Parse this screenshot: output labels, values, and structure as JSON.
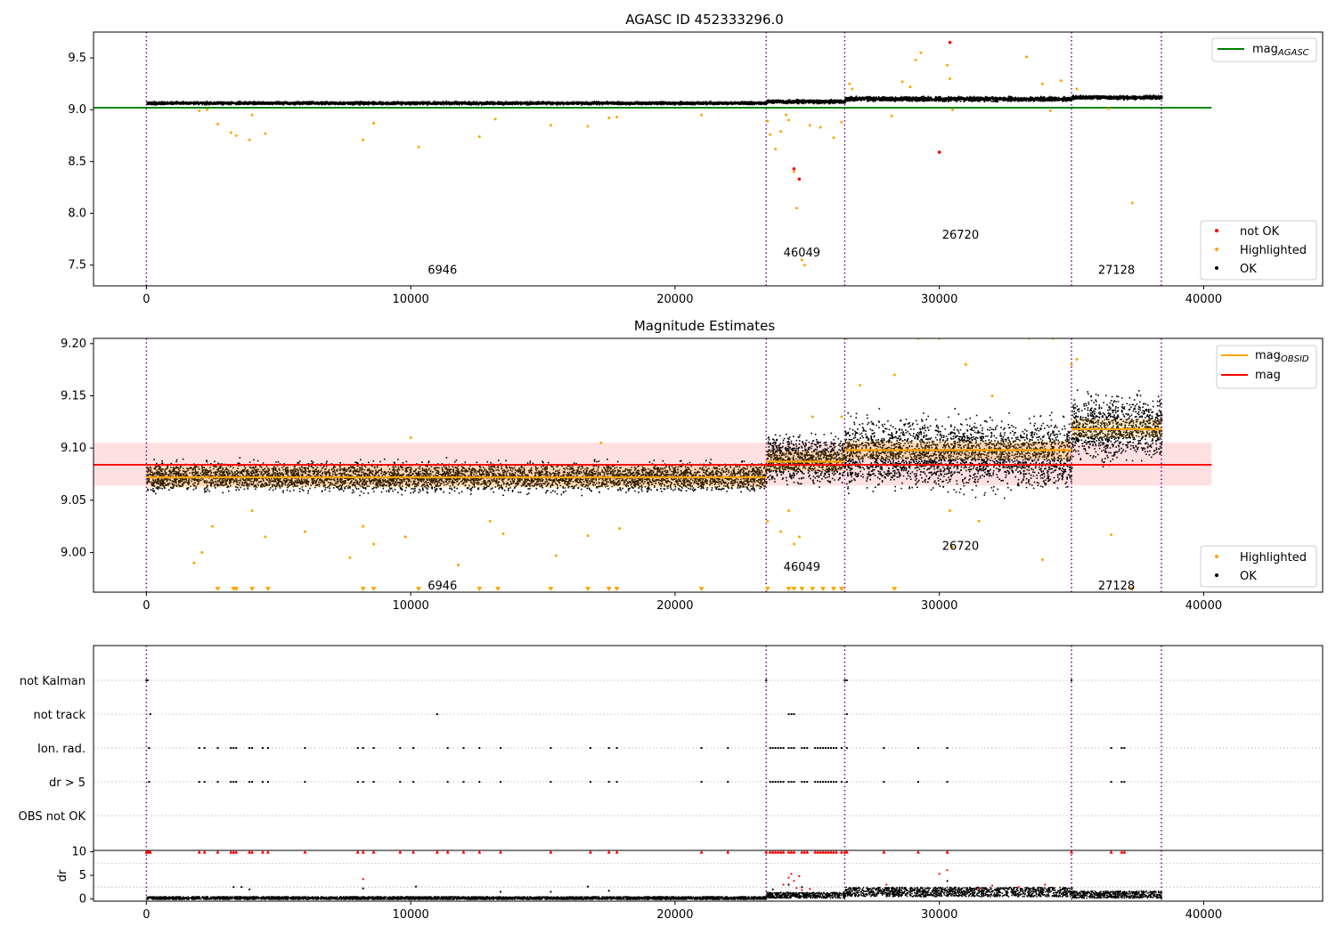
{
  "chart_data": [
    {
      "type": "scatter",
      "title": "AGASC ID 452333296.0",
      "xlim": [
        -2000,
        44500
      ],
      "ylim": [
        7.3,
        9.75
      ],
      "x_ticks": [
        0,
        10000,
        20000,
        30000,
        40000
      ],
      "y_ticks": [
        7.5,
        8.0,
        8.5,
        9.0,
        9.5
      ],
      "vlines": [
        0,
        23450,
        26420,
        35000,
        38400
      ],
      "reference_lines": [
        {
          "name": "mag_AGASC",
          "y": 9.02,
          "x_range": [
            -2000,
            40300
          ],
          "color": "#008000"
        }
      ],
      "ok_bands": [
        {
          "x_range": [
            0,
            23450
          ],
          "center": 9.07,
          "half_width": 0.02
        },
        {
          "x_range": [
            23450,
            26420
          ],
          "center": 9.085,
          "half_width": 0.025
        },
        {
          "x_range": [
            26420,
            35000
          ],
          "center": 9.11,
          "half_width": 0.03
        },
        {
          "x_range": [
            35000,
            38400
          ],
          "center": 9.125,
          "half_width": 0.025
        }
      ],
      "highlighted": [
        [
          2000,
          8.99
        ],
        [
          2300,
          9.0
        ],
        [
          2700,
          8.86
        ],
        [
          3200,
          8.78
        ],
        [
          3400,
          8.75
        ],
        [
          3900,
          8.71
        ],
        [
          4000,
          8.95
        ],
        [
          4500,
          8.77
        ],
        [
          8200,
          8.71
        ],
        [
          8600,
          8.87
        ],
        [
          10300,
          8.64
        ],
        [
          12600,
          8.74
        ],
        [
          13200,
          8.91
        ],
        [
          15300,
          8.85
        ],
        [
          16700,
          8.84
        ],
        [
          17500,
          8.92
        ],
        [
          17800,
          8.93
        ],
        [
          21000,
          8.95
        ],
        [
          23500,
          8.89
        ],
        [
          23600,
          8.76
        ],
        [
          23800,
          8.62
        ],
        [
          24000,
          8.79
        ],
        [
          24200,
          8.95
        ],
        [
          24300,
          8.9
        ],
        [
          24500,
          8.4
        ],
        [
          24600,
          8.05
        ],
        [
          24800,
          7.55
        ],
        [
          24900,
          7.5
        ],
        [
          25100,
          8.85
        ],
        [
          25500,
          8.83
        ],
        [
          26000,
          8.73
        ],
        [
          26300,
          8.88
        ],
        [
          26600,
          9.25
        ],
        [
          26700,
          9.2
        ],
        [
          28200,
          8.94
        ],
        [
          28600,
          9.27
        ],
        [
          28900,
          9.22
        ],
        [
          29100,
          9.48
        ],
        [
          29300,
          9.55
        ],
        [
          30300,
          9.43
        ],
        [
          30400,
          9.3
        ],
        [
          30500,
          9.0
        ],
        [
          33300,
          9.51
        ],
        [
          33900,
          9.25
        ],
        [
          34200,
          8.99
        ],
        [
          34600,
          9.28
        ],
        [
          35200,
          9.2
        ],
        [
          36400,
          9.01
        ],
        [
          37300,
          8.1
        ]
      ],
      "not_ok": [
        [
          24500,
          8.43
        ],
        [
          24700,
          8.33
        ],
        [
          30000,
          8.59
        ],
        [
          30400,
          9.65
        ]
      ],
      "annotations": [
        {
          "text": "6946",
          "x": 11200,
          "y": 7.45
        },
        {
          "text": "46049",
          "x": 24800,
          "y": 7.62
        },
        {
          "text": "26720",
          "x": 30800,
          "y": 7.79
        },
        {
          "text": "27128",
          "x": 36700,
          "y": 7.45
        }
      ],
      "legend_lines": [
        {
          "label": "mag",
          "sub": "AGASC",
          "color": "#008000",
          "position": "top-right"
        }
      ],
      "legend_markers": [
        {
          "label": "not OK",
          "color": "#ff0000"
        },
        {
          "label": "Highlighted",
          "color": "#ffa500"
        },
        {
          "label": "OK",
          "color": "#000000"
        }
      ],
      "legend_placement": "lower-right"
    },
    {
      "type": "scatter",
      "title": "Magnitude Estimates",
      "xlim": [
        -2000,
        44500
      ],
      "ylim": [
        8.962,
        9.205
      ],
      "x_ticks": [
        0,
        10000,
        20000,
        30000,
        40000
      ],
      "y_ticks": [
        9.0,
        9.05,
        9.1,
        9.15,
        9.2
      ],
      "vlines": [
        0,
        23450,
        26420,
        35000,
        38400
      ],
      "mag_line": {
        "y": 9.084,
        "x_range": [
          -2000,
          40300
        ],
        "color": "#ff0000"
      },
      "mag_band": {
        "y_range": [
          9.064,
          9.105
        ],
        "color": "#ffcccc"
      },
      "obsid_mags": [
        {
          "x_range": [
            0,
            23450
          ],
          "y": 9.072,
          "low": 9.062,
          "high": 9.083
        },
        {
          "x_range": [
            23450,
            26420
          ],
          "y": 9.087,
          "low": 9.078,
          "high": 9.097
        },
        {
          "x_range": [
            26420,
            35000
          ],
          "y": 9.098,
          "low": 9.089,
          "high": 9.107
        },
        {
          "x_range": [
            35000,
            38400
          ],
          "y": 9.118,
          "low": 9.11,
          "high": 9.128
        }
      ],
      "ok_bands": [
        {
          "x_range": [
            0,
            23450
          ],
          "center": 9.073,
          "half_width": 0.019
        },
        {
          "x_range": [
            23450,
            26420
          ],
          "center": 9.09,
          "half_width": 0.03
        },
        {
          "x_range": [
            26420,
            35000
          ],
          "center": 9.095,
          "half_width": 0.045
        },
        {
          "x_range": [
            35000,
            38400
          ],
          "center": 9.12,
          "half_width": 0.04
        }
      ],
      "highlighted": [
        [
          1800,
          8.99
        ],
        [
          2100,
          9.0
        ],
        [
          2500,
          9.025
        ],
        [
          4000,
          9.04
        ],
        [
          4500,
          9.015
        ],
        [
          6000,
          9.02
        ],
        [
          7700,
          8.995
        ],
        [
          8200,
          9.025
        ],
        [
          8600,
          9.008
        ],
        [
          9800,
          9.015
        ],
        [
          10000,
          9.11
        ],
        [
          11800,
          8.988
        ],
        [
          13000,
          9.03
        ],
        [
          13500,
          9.018
        ],
        [
          15500,
          8.997
        ],
        [
          16700,
          9.016
        ],
        [
          17200,
          9.105
        ],
        [
          17900,
          9.023
        ],
        [
          23500,
          9.03
        ],
        [
          24000,
          9.02
        ],
        [
          24300,
          9.04
        ],
        [
          24500,
          9.008
        ],
        [
          24700,
          9.015
        ],
        [
          25200,
          9.13
        ],
        [
          26300,
          9.13
        ],
        [
          26500,
          9.205
        ],
        [
          27000,
          9.16
        ],
        [
          28300,
          9.17
        ],
        [
          29200,
          9.205
        ],
        [
          30000,
          9.205
        ],
        [
          30400,
          9.04
        ],
        [
          30500,
          9.005
        ],
        [
          31000,
          9.18
        ],
        [
          31500,
          9.03
        ],
        [
          32000,
          9.15
        ],
        [
          33400,
          9.205
        ],
        [
          33900,
          8.993
        ],
        [
          34300,
          9.205
        ],
        [
          35000,
          9.18
        ],
        [
          35200,
          9.185
        ],
        [
          36500,
          9.017
        ]
      ],
      "below_axis_markers": [
        2700,
        3300,
        3400,
        4000,
        4600,
        8200,
        8600,
        10300,
        12600,
        13300,
        15300,
        16700,
        17500,
        17800,
        21000,
        23500,
        24300,
        24500,
        24800,
        25200,
        25600,
        26000,
        26300,
        28300,
        37300
      ],
      "annotations": [
        {
          "text": "6946",
          "x": 11200,
          "y": 8.968
        },
        {
          "text": "46049",
          "x": 24800,
          "y": 8.986
        },
        {
          "text": "26720",
          "x": 30800,
          "y": 9.006
        },
        {
          "text": "27128",
          "x": 36700,
          "y": 8.968
        }
      ],
      "legend_lines": [
        {
          "label": "mag",
          "sub": "OBSID",
          "color": "#ffa500"
        },
        {
          "label": "mag",
          "sub": "",
          "color": "#ff0000"
        }
      ],
      "legend_markers": [
        {
          "label": "Highlighted",
          "color": "#ffa500"
        },
        {
          "label": "OK",
          "color": "#000000"
        }
      ],
      "legend_placement": "lower-right"
    },
    {
      "type": "scatter",
      "title": "",
      "xlim": [
        -2000,
        44500
      ],
      "x_ticks": [
        0,
        10000,
        20000,
        30000,
        40000
      ],
      "vlines": [
        0,
        23450,
        26420,
        35000,
        38400
      ],
      "flag_rows": [
        "not Kalman",
        "not track",
        "Ion. rad.",
        "dr > 5",
        "OBS not OK"
      ],
      "flag_points": {
        "not Kalman": [
          0,
          50,
          23450,
          26420,
          26500,
          35000
        ],
        "not track": [
          150,
          11000,
          24300,
          24400,
          24500,
          26500
        ],
        "Ion. rad.": [
          100,
          2000,
          2200,
          2700,
          3200,
          3300,
          3400,
          3900,
          4000,
          4400,
          4600,
          6000,
          8000,
          8200,
          8600,
          9600,
          10100,
          11400,
          12000,
          12600,
          13400,
          15300,
          16800,
          17500,
          17800,
          21000,
          22000,
          23600,
          23700,
          23800,
          23900,
          24000,
          24100,
          24300,
          24400,
          24500,
          24800,
          24900,
          25000,
          25300,
          25400,
          25500,
          25600,
          25700,
          25800,
          25900,
          26000,
          26100,
          26300,
          26500,
          27900,
          29200,
          30300,
          36500,
          36900,
          37000
        ],
        "dr > 5": [
          100,
          2000,
          2200,
          2700,
          3200,
          3300,
          3400,
          3900,
          4000,
          4400,
          4600,
          6000,
          8000,
          8200,
          8600,
          9600,
          10100,
          11400,
          12000,
          12600,
          13400,
          15300,
          16800,
          17500,
          17800,
          21000,
          22000,
          23600,
          23700,
          23800,
          23900,
          24000,
          24100,
          24300,
          24400,
          24500,
          24800,
          24900,
          25000,
          25300,
          25400,
          25500,
          25600,
          25700,
          25800,
          25900,
          26000,
          26100,
          26300,
          26500,
          27900,
          29200,
          30300,
          36500,
          36900,
          37000
        ],
        "OBS not OK": []
      }
    },
    {
      "type": "scatter",
      "ylabel": "dr",
      "xlim": [
        -2000,
        44500
      ],
      "ylim": [
        -0.5,
        10.3
      ],
      "x_ticks": [
        0,
        10000,
        20000,
        30000,
        40000
      ],
      "y_ticks": [
        0,
        5,
        10
      ],
      "vlines": [
        0,
        23450,
        26420,
        35000,
        38400
      ],
      "dr_bands": [
        {
          "x_range": [
            0,
            23450
          ],
          "low": 0.0,
          "high": 0.6
        },
        {
          "x_range": [
            23450,
            26420
          ],
          "low": 0.3,
          "high": 1.5
        },
        {
          "x_range": [
            26420,
            35000
          ],
          "low": 0.6,
          "high": 2.6
        },
        {
          "x_range": [
            35000,
            38400
          ],
          "low": 0.3,
          "high": 1.8
        }
      ],
      "dr_outliers_ok": [
        [
          3300,
          2.5
        ],
        [
          3600,
          2.5
        ],
        [
          3900,
          2.0
        ],
        [
          8200,
          2.2
        ],
        [
          10200,
          2.6
        ],
        [
          13400,
          1.5
        ],
        [
          15300,
          1.5
        ],
        [
          16700,
          2.6
        ],
        [
          17500,
          1.7
        ],
        [
          23700,
          2.0
        ],
        [
          24300,
          3.0
        ],
        [
          24800,
          2.5
        ],
        [
          30300,
          3.8
        ]
      ],
      "dr_outliers_not_ok": [
        [
          8200,
          4.2
        ],
        [
          24100,
          3.0
        ],
        [
          24300,
          4.5
        ],
        [
          24400,
          5.3
        ],
        [
          24500,
          3.8
        ],
        [
          24600,
          2.3
        ],
        [
          24700,
          4.8
        ],
        [
          24800,
          1.9
        ],
        [
          25100,
          2.1
        ],
        [
          28000,
          3.0
        ],
        [
          30000,
          5.3
        ],
        [
          30300,
          6.1
        ],
        [
          31500,
          2.2
        ],
        [
          32000,
          2.8
        ],
        [
          33000,
          2.5
        ],
        [
          34000,
          3.0
        ]
      ],
      "capped_markers": [
        0,
        50,
        100,
        150,
        2000,
        2200,
        2700,
        3200,
        3300,
        3400,
        3900,
        4000,
        4400,
        4600,
        6000,
        8000,
        8200,
        8600,
        9600,
        10100,
        11000,
        11400,
        12000,
        12600,
        13400,
        15300,
        16800,
        17500,
        17800,
        21000,
        22000,
        23450,
        23600,
        23700,
        23800,
        23900,
        24000,
        24100,
        24300,
        24400,
        24500,
        24800,
        24900,
        25000,
        25300,
        25400,
        25500,
        25600,
        25700,
        25800,
        25900,
        26000,
        26100,
        26300,
        26420,
        26500,
        27900,
        29200,
        30300,
        35000,
        36500,
        36900,
        37000
      ]
    }
  ]
}
